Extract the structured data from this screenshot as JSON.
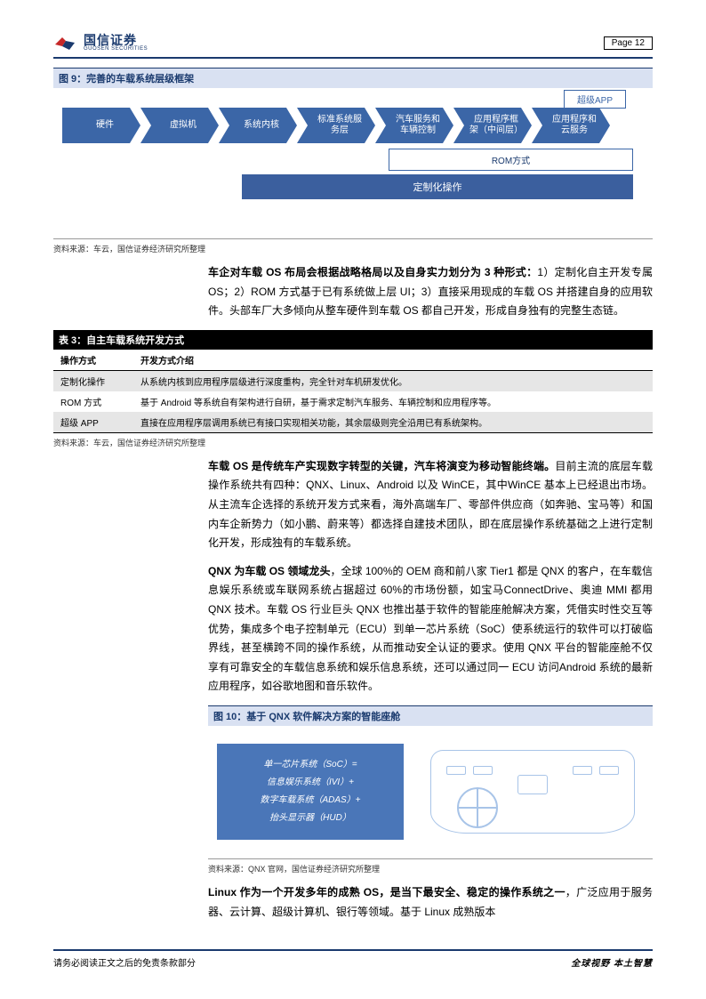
{
  "header": {
    "logo_cn": "国信证券",
    "logo_en": "GUOSEN SECURITIES",
    "page_label": "Page  12"
  },
  "fig9": {
    "title": "图 9：完善的车载系统层级框架",
    "arrows": [
      "硬件",
      "虚拟机",
      "系统内核",
      "标准系统服\n务层",
      "汽车服务和\n车辆控制",
      "应用程序框\n架（中间层）",
      "应用程序和\n云服务"
    ],
    "super_app": "超级APP",
    "rom_bar": "ROM方式",
    "custom_bar": "定制化操作",
    "source": "资料来源：车云，国信证券经济研究所整理"
  },
  "para1": "<strong>车企对车载 OS 布局会根据战略格局以及自身实力划分为 3 种形式：</strong>1）定制化自主开发专属 OS；2）ROM 方式基于已有系统做上层 UI；3）直接采用现成的车载 OS 并搭建自身的应用软件。头部车厂大多倾向从整车硬件到车载 OS 都自己开发，形成自身独有的完整生态链。",
  "table3": {
    "title": "表 3：自主车载系统开发方式",
    "columns": [
      "操作方式",
      "开发方式介绍"
    ],
    "rows": [
      [
        "定制化操作",
        "从系统内核到应用程序层级进行深度重构，完全针对车机研发优化。"
      ],
      [
        "ROM 方式",
        "基于 Android 等系统自有架构进行自研，基于需求定制汽车服务、车辆控制和应用程序等。"
      ],
      [
        "超级 APP",
        "直接在应用程序层调用系统已有接口实现相关功能，其余层级则完全沿用已有系统架构。"
      ]
    ],
    "source": "资料来源：车云，国信证券经济研究所整理"
  },
  "para2": "<strong>车载 OS 是传统车产实现数字转型的关键，汽车将演变为移动智能终端。</strong>目前主流的底层车载操作系统共有四种：QNX、Linux、Android 以及 WinCE，其中WinCE 基本上已经退出市场。从主流车企选择的系统开发方式来看，海外高端车厂、零部件供应商（如奔驰、宝马等）和国内车企新势力（如小鹏、蔚来等）都选择自建技术团队，即在底层操作系统基础之上进行定制化开发，形成独有的车载系统。",
  "para3": "<strong>QNX 为车载 OS 领域龙头</strong>，全球 100%的 OEM 商和前八家 Tier1 都是 QNX 的客户，在车载信息娱乐系统或车联网系统占据超过 60%的市场份额，如宝马ConnectDrive、奥迪 MMI 都用 QNX 技术。车载 OS 行业巨头 QNX 也推出基于软件的智能座舱解决方案，凭借实时性交互等优势，集成多个电子控制单元（ECU）到单一芯片系统（SoC）使系统运行的软件可以打破临界线，甚至横跨不同的操作系统，从而推动安全认证的要求。使用 QNX 平台的智能座舱不仅享有可靠安全的车载信息系统和娱乐信息系统，还可以通过同一 ECU 访问Android 系统的最新应用程序，如谷歌地图和音乐软件。",
  "fig10": {
    "title": "图 10：基于 QNX 软件解决方案的智能座舱",
    "soc_lines": [
      "单一芯片系统（SoC）=",
      "信息娱乐系统（IVI）+",
      "数字车载系统（ADAS）+",
      "抬头显示器（HUD）"
    ],
    "source": "资料来源：QNX 官网，国信证券经济研究所整理"
  },
  "para4": "<strong>Linux 作为一个开发多年的成熟 OS，是当下最安全、稳定的操作系统之一</strong>，广泛应用于服务器、云计算、超级计算机、银行等领域。基于 Linux 成熟版本",
  "footer": {
    "left": "请务必阅读正文之后的免责条款部分",
    "right": "全球视野  本土智慧"
  },
  "style": {
    "accent": "#1a3a6e",
    "arrow_fill": "#3b66a7",
    "fig_bg": "#d9e1f2",
    "soc_fill": "#4a76b8",
    "diagram_line": "#a8c4e8",
    "table_shade": "#e6e6e6"
  }
}
